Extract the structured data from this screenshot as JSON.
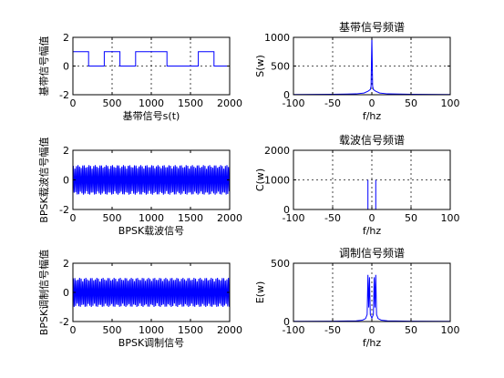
{
  "chart_data": [
    {
      "type": "line",
      "title": "",
      "xlabel": "基带信号s(t)",
      "ylabel": "基带信号幅值",
      "xlim": [
        0,
        2000
      ],
      "ylim": [
        -2,
        2
      ],
      "xticks": [
        0,
        500,
        1000,
        1500,
        2000
      ],
      "yticks": [
        -2,
        0,
        2
      ],
      "grid": true,
      "series": [
        {
          "x": [
            0,
            200,
            200,
            400,
            400,
            600,
            600,
            800,
            800,
            1200,
            1200,
            1600,
            1600,
            1800,
            1800,
            2000
          ],
          "y": [
            1,
            1,
            0,
            0,
            1,
            1,
            0,
            0,
            1,
            1,
            0,
            0,
            1,
            1,
            0,
            0
          ]
        }
      ]
    },
    {
      "type": "line",
      "title": "基带信号频谱",
      "xlabel": "f/hz",
      "ylabel": "S(w)",
      "xlim": [
        -100,
        100
      ],
      "ylim": [
        0,
        1000
      ],
      "xticks": [
        -100,
        -50,
        0,
        50,
        100
      ],
      "yticks": [
        0,
        500,
        1000
      ],
      "grid": true,
      "series": [
        {
          "x": [
            -100,
            -50,
            -20,
            -10,
            -5,
            -2,
            -1,
            0,
            1,
            2,
            5,
            10,
            20,
            50,
            100
          ],
          "y": [
            5,
            8,
            15,
            30,
            60,
            90,
            150,
            1000,
            150,
            90,
            60,
            30,
            15,
            8,
            5
          ]
        }
      ]
    },
    {
      "type": "line",
      "title": "",
      "xlabel": "BPSK载波信号",
      "ylabel": "BPSK载波信号幅值",
      "xlim": [
        0,
        2000
      ],
      "ylim": [
        -2,
        2
      ],
      "xticks": [
        0,
        500,
        1000,
        1500,
        2000
      ],
      "yticks": [
        -2,
        0,
        2
      ],
      "grid": false,
      "series": [
        {
          "amplitude": 1,
          "cycles": 100
        }
      ]
    },
    {
      "type": "line",
      "title": "载波信号频谱",
      "xlabel": "f/hz",
      "ylabel": "C(w)",
      "xlim": [
        -100,
        100
      ],
      "ylim": [
        0,
        2000
      ],
      "xticks": [
        -100,
        -50,
        0,
        50,
        100
      ],
      "yticks": [
        0,
        1000,
        2000
      ],
      "grid": true,
      "series": [
        {
          "x": [
            -100,
            -5,
            -5,
            -5,
            -4,
            4,
            5,
            5,
            5,
            100
          ],
          "y": [
            0,
            0,
            1000,
            0,
            0,
            0,
            0,
            1000,
            0,
            0
          ]
        }
      ]
    },
    {
      "type": "line",
      "title": "",
      "xlabel": "BPSK调制信号",
      "ylabel": "BPSK调制信号幅值",
      "xlim": [
        0,
        2000
      ],
      "ylim": [
        -2,
        2
      ],
      "xticks": [
        0,
        500,
        1000,
        1500,
        2000
      ],
      "yticks": [
        -2,
        0,
        2
      ],
      "grid": false,
      "series": [
        {
          "amplitude": 1,
          "cycles": 100
        }
      ]
    },
    {
      "type": "line",
      "title": "调制信号频谱",
      "xlabel": "f/hz",
      "ylabel": "E(w)",
      "xlim": [
        -100,
        100
      ],
      "ylim": [
        0,
        500
      ],
      "xticks": [
        -100,
        -50,
        0,
        50,
        100
      ],
      "yticks": [
        0,
        500
      ],
      "grid": true,
      "series": [
        {
          "x": [
            -100,
            -50,
            -20,
            -12,
            -8,
            -6,
            -5,
            -4,
            -3,
            -2,
            0,
            2,
            3,
            4,
            5,
            6,
            8,
            12,
            20,
            50,
            100
          ],
          "y": [
            2,
            3,
            6,
            12,
            25,
            60,
            400,
            120,
            380,
            60,
            30,
            60,
            380,
            120,
            400,
            60,
            25,
            12,
            6,
            3,
            2
          ]
        }
      ]
    }
  ]
}
